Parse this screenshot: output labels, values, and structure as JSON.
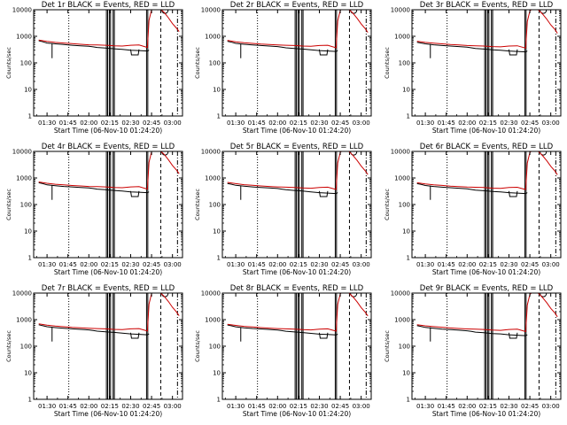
{
  "chart_data": [
    {
      "type": "line",
      "title": "Det 1r BLACK = Events, RED = LLD",
      "xlabel": "Start Time (06-Nov-10 01:24:20)",
      "ylabel": "Counts/sec",
      "yscale": "log",
      "ylim": [
        1,
        10000
      ],
      "x_ticks": [
        "01:30",
        "01:45",
        "02:00",
        "02:15",
        "02:30",
        "02:45",
        "03:00"
      ],
      "y_ticks": [
        "1",
        "10",
        "100",
        "1000",
        "10000"
      ],
      "series": [
        {
          "name": "Events",
          "color": "#000000",
          "x": [
            1.4,
            1.45,
            1.5,
            1.6,
            1.7,
            1.8,
            1.9,
            2.0,
            2.05,
            2.1,
            2.2,
            2.25,
            2.3,
            2.4,
            2.5,
            2.6,
            2.7,
            2.72
          ],
          "y": [
            680,
            620,
            560,
            520,
            490,
            460,
            440,
            420,
            400,
            380,
            360,
            350,
            340,
            320,
            300,
            290,
            280,
            300
          ]
        },
        {
          "name": "LLD",
          "color": "#cc0000",
          "x": [
            1.4,
            1.5,
            1.6,
            1.7,
            1.8,
            1.9,
            2.0,
            2.1,
            2.2,
            2.3,
            2.4,
            2.5,
            2.6,
            2.7,
            2.72,
            2.75,
            2.8,
            2.85,
            2.9,
            2.95,
            3.0,
            3.05,
            3.08
          ],
          "y": [
            720,
            640,
            590,
            560,
            530,
            500,
            480,
            470,
            460,
            440,
            430,
            460,
            470,
            380,
            4000,
            10000,
            14000,
            11000,
            8000,
            5000,
            3000,
            2000,
            1500
          ]
        }
      ]
    },
    {
      "type": "line",
      "title": "Det 2r BLACK = Events, RED = LLD",
      "xlabel": "Start Time (06-Nov-10 01:24:20)",
      "ylabel": "Counts/sec",
      "yscale": "log",
      "ylim": [
        1,
        10000
      ],
      "x_ticks": [
        "01:30",
        "01:45",
        "02:00",
        "02:15",
        "02:30",
        "02:45",
        "03:00"
      ],
      "y_ticks": [
        "1",
        "10",
        "100",
        "1000",
        "10000"
      ],
      "series": [
        {
          "name": "Events",
          "color": "#000000",
          "x": [
            1.4,
            1.45,
            1.5,
            1.6,
            1.7,
            1.8,
            1.9,
            2.0,
            2.05,
            2.1,
            2.2,
            2.25,
            2.3,
            2.4,
            2.5,
            2.6,
            2.7,
            2.72
          ],
          "y": [
            650,
            600,
            540,
            500,
            470,
            450,
            430,
            410,
            390,
            370,
            350,
            340,
            330,
            310,
            290,
            280,
            270,
            290
          ]
        },
        {
          "name": "LLD",
          "color": "#cc0000",
          "x": [
            1.4,
            1.5,
            1.6,
            1.7,
            1.8,
            1.9,
            2.0,
            2.1,
            2.2,
            2.3,
            2.4,
            2.5,
            2.6,
            2.7,
            2.72,
            2.75,
            2.8,
            2.85,
            2.9,
            2.95,
            3.0,
            3.05,
            3.08
          ],
          "y": [
            700,
            620,
            570,
            540,
            510,
            490,
            470,
            460,
            450,
            430,
            420,
            450,
            460,
            370,
            3800,
            9500,
            13000,
            10500,
            7500,
            4800,
            2900,
            1900,
            1400
          ]
        }
      ]
    },
    {
      "type": "line",
      "title": "Det 3r BLACK = Events, RED = LLD",
      "xlabel": "Start Time (06-Nov-10 01:24:20)",
      "ylabel": "Counts/sec",
      "yscale": "log",
      "ylim": [
        1,
        10000
      ],
      "x_ticks": [
        "01:30",
        "01:45",
        "02:00",
        "02:15",
        "02:30",
        "02:45",
        "03:00"
      ],
      "y_ticks": [
        "1",
        "10",
        "100",
        "1000",
        "10000"
      ],
      "series": [
        {
          "name": "Events",
          "color": "#000000",
          "x": [
            1.4,
            1.45,
            1.5,
            1.6,
            1.7,
            1.8,
            1.9,
            2.0,
            2.05,
            2.1,
            2.2,
            2.25,
            2.3,
            2.4,
            2.5,
            2.6,
            2.7,
            2.72
          ],
          "y": [
            600,
            560,
            520,
            480,
            450,
            430,
            410,
            390,
            370,
            350,
            330,
            320,
            310,
            300,
            280,
            270,
            260,
            280
          ]
        },
        {
          "name": "LLD",
          "color": "#cc0000",
          "x": [
            1.4,
            1.5,
            1.6,
            1.7,
            1.8,
            1.9,
            2.0,
            2.1,
            2.2,
            2.3,
            2.4,
            2.5,
            2.6,
            2.7,
            2.72,
            2.75,
            2.8,
            2.85,
            2.9,
            2.95,
            3.0,
            3.05,
            3.08
          ],
          "y": [
            650,
            590,
            550,
            520,
            490,
            470,
            450,
            440,
            430,
            410,
            400,
            430,
            440,
            360,
            3600,
            9000,
            12500,
            10000,
            7000,
            4500,
            2700,
            1800,
            1300
          ]
        }
      ]
    },
    {
      "type": "line",
      "title": "Det 4r BLACK = Events, RED = LLD",
      "xlabel": "Start Time (06-Nov-10 01:24:20)",
      "ylabel": "Counts/sec",
      "yscale": "log",
      "ylim": [
        1,
        10000
      ],
      "x_ticks": [
        "01:30",
        "01:45",
        "02:00",
        "02:15",
        "02:30",
        "02:45",
        "03:00"
      ],
      "y_ticks": [
        "1",
        "10",
        "100",
        "1000",
        "10000"
      ],
      "series": [
        {
          "name": "Events",
          "color": "#000000",
          "x": [
            1.4,
            1.45,
            1.5,
            1.6,
            1.7,
            1.8,
            1.9,
            2.0,
            2.05,
            2.1,
            2.2,
            2.25,
            2.3,
            2.4,
            2.5,
            2.6,
            2.7,
            2.72
          ],
          "y": [
            660,
            610,
            550,
            510,
            480,
            460,
            440,
            420,
            400,
            380,
            360,
            350,
            340,
            320,
            300,
            290,
            280,
            300
          ]
        },
        {
          "name": "LLD",
          "color": "#cc0000",
          "x": [
            1.4,
            1.5,
            1.6,
            1.7,
            1.8,
            1.9,
            2.0,
            2.1,
            2.2,
            2.3,
            2.4,
            2.5,
            2.6,
            2.7,
            2.72,
            2.75,
            2.8,
            2.85,
            2.9,
            2.95,
            3.0,
            3.05,
            3.08
          ],
          "y": [
            710,
            630,
            580,
            550,
            520,
            500,
            480,
            470,
            460,
            440,
            430,
            460,
            470,
            380,
            3900,
            9800,
            13500,
            10800,
            7800,
            4900,
            2950,
            1950,
            1450
          ]
        }
      ]
    },
    {
      "type": "line",
      "title": "Det 5r BLACK = Events, RED = LLD",
      "xlabel": "Start Time (06-Nov-10 01:24:20)",
      "ylabel": "Counts/sec",
      "yscale": "log",
      "ylim": [
        1,
        10000
      ],
      "x_ticks": [
        "01:30",
        "01:45",
        "02:00",
        "02:15",
        "02:30",
        "02:45",
        "03:00"
      ],
      "y_ticks": [
        "1",
        "10",
        "100",
        "1000",
        "10000"
      ],
      "series": [
        {
          "name": "Events",
          "color": "#000000",
          "x": [
            1.4,
            1.45,
            1.5,
            1.6,
            1.7,
            1.8,
            1.9,
            2.0,
            2.05,
            2.1,
            2.2,
            2.25,
            2.3,
            2.4,
            2.5,
            2.6,
            2.7,
            2.72
          ],
          "y": [
            620,
            580,
            530,
            490,
            460,
            440,
            420,
            400,
            380,
            360,
            340,
            330,
            320,
            300,
            280,
            270,
            260,
            280
          ]
        },
        {
          "name": "LLD",
          "color": "#cc0000",
          "x": [
            1.4,
            1.5,
            1.6,
            1.7,
            1.8,
            1.9,
            2.0,
            2.1,
            2.2,
            2.3,
            2.4,
            2.5,
            2.6,
            2.7,
            2.72,
            2.75,
            2.8,
            2.85,
            2.9,
            2.95,
            3.0,
            3.05,
            3.08
          ],
          "y": [
            680,
            610,
            560,
            530,
            500,
            480,
            460,
            450,
            440,
            420,
            410,
            440,
            450,
            370,
            3700,
            9200,
            12800,
            10200,
            7200,
            4600,
            2800,
            1850,
            1350
          ]
        }
      ]
    },
    {
      "type": "line",
      "title": "Det 6r BLACK = Events, RED = LLD",
      "xlabel": "Start Time (06-Nov-10 01:24:20)",
      "ylabel": "Counts/sec",
      "yscale": "log",
      "ylim": [
        1,
        10000
      ],
      "x_ticks": [
        "01:30",
        "01:45",
        "02:00",
        "02:15",
        "02:30",
        "02:45",
        "03:00"
      ],
      "y_ticks": [
        "1",
        "10",
        "100",
        "1000",
        "10000"
      ],
      "series": [
        {
          "name": "Events",
          "color": "#000000",
          "x": [
            1.4,
            1.45,
            1.5,
            1.6,
            1.7,
            1.8,
            1.9,
            2.0,
            2.05,
            2.1,
            2.2,
            2.25,
            2.3,
            2.4,
            2.5,
            2.6,
            2.7,
            2.72
          ],
          "y": [
            610,
            570,
            520,
            480,
            450,
            430,
            410,
            390,
            370,
            350,
            330,
            320,
            310,
            300,
            280,
            270,
            260,
            280
          ]
        },
        {
          "name": "LLD",
          "color": "#cc0000",
          "x": [
            1.4,
            1.5,
            1.6,
            1.7,
            1.8,
            1.9,
            2.0,
            2.1,
            2.2,
            2.3,
            2.4,
            2.5,
            2.6,
            2.7,
            2.72,
            2.75,
            2.8,
            2.85,
            2.9,
            2.95,
            3.0,
            3.05,
            3.08
          ],
          "y": [
            660,
            600,
            555,
            525,
            495,
            475,
            455,
            445,
            435,
            415,
            405,
            435,
            445,
            365,
            3650,
            9100,
            12600,
            10100,
            7100,
            4550,
            2750,
            1820,
            1320
          ]
        }
      ]
    },
    {
      "type": "line",
      "title": "Det 7r BLACK = Events, RED = LLD",
      "xlabel": "Start Time (06-Nov-10 01:24:20)",
      "ylabel": "Counts/sec",
      "yscale": "log",
      "ylim": [
        1,
        10000
      ],
      "x_ticks": [
        "01:30",
        "01:45",
        "02:00",
        "02:15",
        "02:30",
        "02:45",
        "03:00"
      ],
      "y_ticks": [
        "1",
        "10",
        "100",
        "1000",
        "10000"
      ],
      "series": [
        {
          "name": "Events",
          "color": "#000000",
          "x": [
            1.4,
            1.45,
            1.5,
            1.6,
            1.7,
            1.8,
            1.9,
            2.0,
            2.05,
            2.1,
            2.2,
            2.25,
            2.3,
            2.4,
            2.5,
            2.6,
            2.7,
            2.72
          ],
          "y": [
            640,
            590,
            540,
            500,
            470,
            450,
            430,
            410,
            390,
            370,
            350,
            340,
            330,
            310,
            290,
            280,
            270,
            290
          ]
        },
        {
          "name": "LLD",
          "color": "#cc0000",
          "x": [
            1.4,
            1.5,
            1.6,
            1.7,
            1.8,
            1.9,
            2.0,
            2.1,
            2.2,
            2.3,
            2.4,
            2.5,
            2.6,
            2.7,
            2.72,
            2.75,
            2.8,
            2.85,
            2.9,
            2.95,
            3.0,
            3.05,
            3.08
          ],
          "y": [
            690,
            620,
            570,
            540,
            510,
            490,
            470,
            460,
            450,
            430,
            420,
            450,
            460,
            375,
            3850,
            9600,
            13200,
            10600,
            7600,
            4850,
            2900,
            1900,
            1400
          ]
        }
      ]
    },
    {
      "type": "line",
      "title": "Det 8r BLACK = Events, RED = LLD",
      "xlabel": "Start Time (06-Nov-10 01:24:20)",
      "ylabel": "Counts/sec",
      "yscale": "log",
      "ylim": [
        1,
        10000
      ],
      "x_ticks": [
        "01:30",
        "01:45",
        "02:00",
        "02:15",
        "02:30",
        "02:45",
        "03:00"
      ],
      "y_ticks": [
        "1",
        "10",
        "100",
        "1000",
        "10000"
      ],
      "series": [
        {
          "name": "Events",
          "color": "#000000",
          "x": [
            1.4,
            1.45,
            1.5,
            1.6,
            1.7,
            1.8,
            1.9,
            2.0,
            2.05,
            2.1,
            2.2,
            2.25,
            2.3,
            2.4,
            2.5,
            2.6,
            2.7,
            2.72
          ],
          "y": [
            630,
            585,
            535,
            495,
            465,
            445,
            425,
            405,
            385,
            365,
            345,
            335,
            325,
            305,
            285,
            275,
            265,
            285
          ]
        },
        {
          "name": "LLD",
          "color": "#cc0000",
          "x": [
            1.4,
            1.5,
            1.6,
            1.7,
            1.8,
            1.9,
            2.0,
            2.1,
            2.2,
            2.3,
            2.4,
            2.5,
            2.6,
            2.7,
            2.72,
            2.75,
            2.8,
            2.85,
            2.9,
            2.95,
            3.0,
            3.05,
            3.08
          ],
          "y": [
            670,
            605,
            560,
            530,
            500,
            480,
            460,
            450,
            440,
            420,
            410,
            440,
            450,
            370,
            3750,
            9300,
            12900,
            10300,
            7300,
            4700,
            2850,
            1870,
            1370
          ]
        }
      ]
    },
    {
      "type": "line",
      "title": "Det 9r BLACK = Events, RED = LLD",
      "xlabel": "Start Time (06-Nov-10 01:24:20)",
      "ylabel": "Counts/sec",
      "yscale": "log",
      "ylim": [
        1,
        10000
      ],
      "x_ticks": [
        "01:30",
        "01:45",
        "02:00",
        "02:15",
        "02:30",
        "02:45",
        "03:00"
      ],
      "y_ticks": [
        "1",
        "10",
        "100",
        "1000",
        "10000"
      ],
      "series": [
        {
          "name": "Events",
          "color": "#000000",
          "x": [
            1.4,
            1.45,
            1.5,
            1.6,
            1.7,
            1.8,
            1.9,
            2.0,
            2.05,
            2.1,
            2.2,
            2.25,
            2.3,
            2.4,
            2.5,
            2.6,
            2.7,
            2.72
          ],
          "y": [
            600,
            555,
            510,
            470,
            440,
            420,
            400,
            380,
            360,
            340,
            320,
            310,
            300,
            290,
            270,
            260,
            250,
            270
          ]
        },
        {
          "name": "LLD",
          "color": "#cc0000",
          "x": [
            1.4,
            1.5,
            1.6,
            1.7,
            1.8,
            1.9,
            2.0,
            2.1,
            2.2,
            2.3,
            2.4,
            2.5,
            2.6,
            2.7,
            2.72,
            2.75,
            2.8,
            2.85,
            2.9,
            2.95,
            3.0,
            3.05,
            3.08
          ],
          "y": [
            640,
            585,
            545,
            515,
            485,
            465,
            445,
            435,
            425,
            405,
            395,
            425,
            435,
            355,
            3550,
            8900,
            12300,
            9900,
            6900,
            4400,
            2650,
            1780,
            1280
          ]
        }
      ]
    }
  ]
}
